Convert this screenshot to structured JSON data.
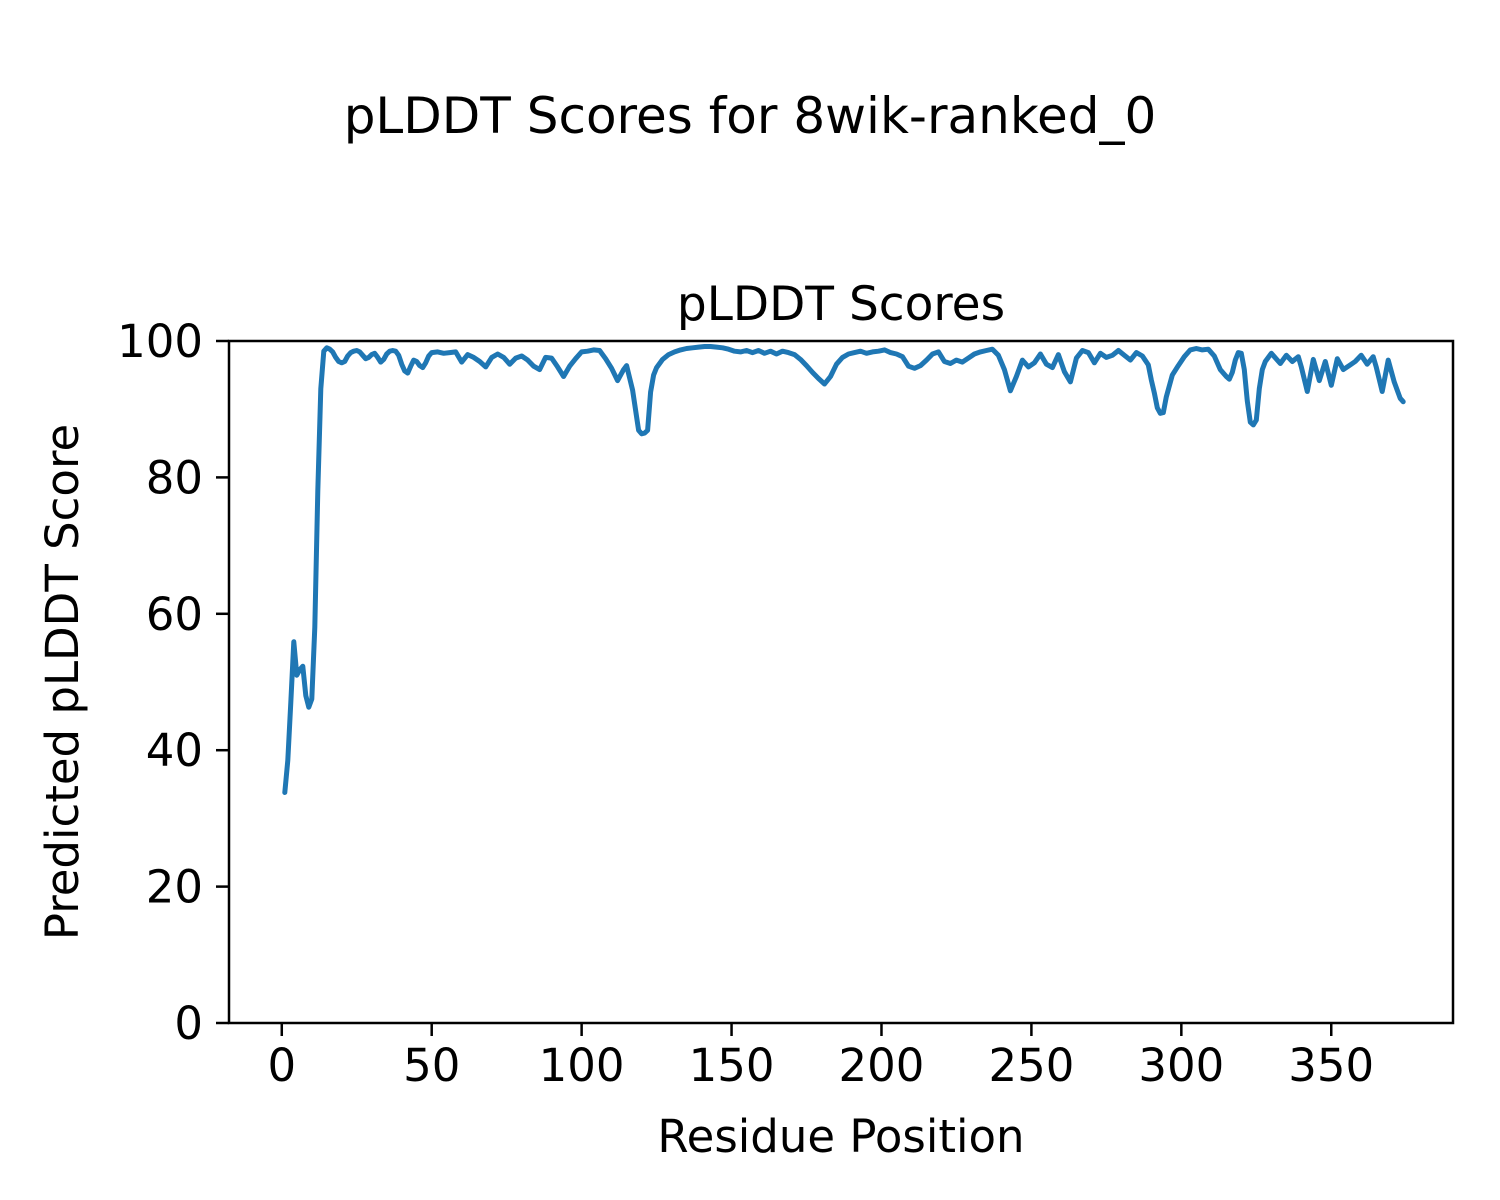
{
  "chart_data": {
    "type": "line",
    "suptitle": "pLDDT Scores for 8wik-ranked_0",
    "title": "pLDDT Scores",
    "xlabel": "Residue Position",
    "ylabel": "Predicted pLDDT Score",
    "xlim": [
      -17.6,
      390.6
    ],
    "ylim": [
      0,
      100
    ],
    "xticks": [
      0,
      50,
      100,
      150,
      200,
      250,
      300,
      350
    ],
    "yticks": [
      0,
      20,
      40,
      60,
      80,
      100
    ],
    "grid": false,
    "legend": "none",
    "line_color": "#1f77b4",
    "series": [
      {
        "name": "pLDDT",
        "points": [
          [
            1,
            33.8
          ],
          [
            2,
            38.5
          ],
          [
            3,
            47.0
          ],
          [
            4,
            55.9
          ],
          [
            5,
            51.0
          ],
          [
            6,
            51.8
          ],
          [
            7,
            52.3
          ],
          [
            8,
            48.0
          ],
          [
            9,
            46.3
          ],
          [
            10,
            47.5
          ],
          [
            11,
            58.0
          ],
          [
            12,
            78.0
          ],
          [
            13,
            93.0
          ],
          [
            14,
            98.5
          ],
          [
            15,
            99.0
          ],
          [
            16,
            98.8
          ],
          [
            17,
            98.4
          ],
          [
            18,
            97.6
          ],
          [
            19,
            97.0
          ],
          [
            20,
            96.8
          ],
          [
            21,
            97.0
          ],
          [
            22,
            97.8
          ],
          [
            23,
            98.3
          ],
          [
            24,
            98.5
          ],
          [
            25,
            98.6
          ],
          [
            26,
            98.4
          ],
          [
            27,
            97.9
          ],
          [
            28,
            97.4
          ],
          [
            29,
            97.6
          ],
          [
            30,
            98.0
          ],
          [
            31,
            98.2
          ],
          [
            32,
            97.6
          ],
          [
            33,
            96.9
          ],
          [
            34,
            97.3
          ],
          [
            35,
            98.1
          ],
          [
            36,
            98.5
          ],
          [
            37,
            98.6
          ],
          [
            38,
            98.5
          ],
          [
            39,
            97.9
          ],
          [
            40,
            96.6
          ],
          [
            41,
            95.6
          ],
          [
            42,
            95.3
          ],
          [
            43,
            96.3
          ],
          [
            44,
            97.2
          ],
          [
            45,
            97.0
          ],
          [
            46,
            96.4
          ],
          [
            47,
            96.1
          ],
          [
            48,
            96.8
          ],
          [
            49,
            97.8
          ],
          [
            50,
            98.3
          ],
          [
            52,
            98.4
          ],
          [
            54,
            98.2
          ],
          [
            56,
            98.3
          ],
          [
            58,
            98.4
          ],
          [
            60,
            96.9
          ],
          [
            62,
            98.0
          ],
          [
            64,
            97.6
          ],
          [
            66,
            97.0
          ],
          [
            68,
            96.2
          ],
          [
            70,
            97.6
          ],
          [
            72,
            98.1
          ],
          [
            74,
            97.6
          ],
          [
            76,
            96.6
          ],
          [
            78,
            97.5
          ],
          [
            80,
            97.8
          ],
          [
            82,
            97.2
          ],
          [
            84,
            96.3
          ],
          [
            86,
            95.8
          ],
          [
            88,
            97.6
          ],
          [
            90,
            97.5
          ],
          [
            92,
            96.2
          ],
          [
            94,
            94.8
          ],
          [
            96,
            96.3
          ],
          [
            98,
            97.4
          ],
          [
            100,
            98.4
          ],
          [
            102,
            98.5
          ],
          [
            104,
            98.7
          ],
          [
            106,
            98.6
          ],
          [
            108,
            97.4
          ],
          [
            110,
            96.0
          ],
          [
            112,
            94.2
          ],
          [
            114,
            95.8
          ],
          [
            115,
            96.4
          ],
          [
            117,
            92.8
          ],
          [
            119,
            86.9
          ],
          [
            120,
            86.4
          ],
          [
            121,
            86.5
          ],
          [
            122,
            86.9
          ],
          [
            123,
            92.5
          ],
          [
            124,
            95.0
          ],
          [
            125,
            96.1
          ],
          [
            127,
            97.3
          ],
          [
            129,
            98.0
          ],
          [
            131,
            98.4
          ],
          [
            133,
            98.7
          ],
          [
            135,
            98.9
          ],
          [
            137,
            99.0
          ],
          [
            139,
            99.1
          ],
          [
            141,
            99.2
          ],
          [
            143,
            99.2
          ],
          [
            145,
            99.1
          ],
          [
            147,
            99.0
          ],
          [
            149,
            98.8
          ],
          [
            151,
            98.5
          ],
          [
            153,
            98.4
          ],
          [
            155,
            98.6
          ],
          [
            157,
            98.3
          ],
          [
            159,
            98.6
          ],
          [
            161,
            98.2
          ],
          [
            163,
            98.5
          ],
          [
            165,
            98.1
          ],
          [
            167,
            98.5
          ],
          [
            169,
            98.3
          ],
          [
            171,
            98.0
          ],
          [
            173,
            97.3
          ],
          [
            175,
            96.4
          ],
          [
            177,
            95.4
          ],
          [
            179,
            94.5
          ],
          [
            181,
            93.7
          ],
          [
            183,
            94.8
          ],
          [
            185,
            96.6
          ],
          [
            187,
            97.6
          ],
          [
            189,
            98.1
          ],
          [
            191,
            98.3
          ],
          [
            193,
            98.5
          ],
          [
            195,
            98.2
          ],
          [
            197,
            98.4
          ],
          [
            199,
            98.5
          ],
          [
            201,
            98.7
          ],
          [
            203,
            98.3
          ],
          [
            205,
            98.1
          ],
          [
            207,
            97.7
          ],
          [
            209,
            96.3
          ],
          [
            211,
            96.0
          ],
          [
            213,
            96.4
          ],
          [
            215,
            97.2
          ],
          [
            217,
            98.1
          ],
          [
            219,
            98.4
          ],
          [
            221,
            97.0
          ],
          [
            223,
            96.7
          ],
          [
            225,
            97.2
          ],
          [
            227,
            96.9
          ],
          [
            229,
            97.5
          ],
          [
            231,
            98.1
          ],
          [
            233,
            98.4
          ],
          [
            235,
            98.6
          ],
          [
            237,
            98.8
          ],
          [
            239,
            97.9
          ],
          [
            241,
            95.8
          ],
          [
            243,
            92.7
          ],
          [
            245,
            94.8
          ],
          [
            247,
            97.2
          ],
          [
            249,
            96.2
          ],
          [
            251,
            96.8
          ],
          [
            253,
            98.1
          ],
          [
            255,
            96.6
          ],
          [
            257,
            96.1
          ],
          [
            259,
            98.0
          ],
          [
            261,
            95.5
          ],
          [
            263,
            94.0
          ],
          [
            265,
            97.5
          ],
          [
            267,
            98.6
          ],
          [
            269,
            98.3
          ],
          [
            271,
            96.8
          ],
          [
            273,
            98.2
          ],
          [
            275,
            97.6
          ],
          [
            277,
            97.9
          ],
          [
            279,
            98.6
          ],
          [
            281,
            97.9
          ],
          [
            283,
            97.2
          ],
          [
            285,
            98.3
          ],
          [
            287,
            97.8
          ],
          [
            289,
            96.5
          ],
          [
            290,
            94.3
          ],
          [
            291,
            92.4
          ],
          [
            292,
            90.2
          ],
          [
            293,
            89.4
          ],
          [
            294,
            89.5
          ],
          [
            295,
            91.8
          ],
          [
            297,
            95.0
          ],
          [
            299,
            96.4
          ],
          [
            301,
            97.7
          ],
          [
            303,
            98.7
          ],
          [
            305,
            98.9
          ],
          [
            307,
            98.7
          ],
          [
            309,
            98.8
          ],
          [
            311,
            97.8
          ],
          [
            313,
            95.8
          ],
          [
            315,
            94.8
          ],
          [
            316,
            94.4
          ],
          [
            317,
            95.4
          ],
          [
            318,
            97.2
          ],
          [
            319,
            98.3
          ],
          [
            320,
            98.2
          ],
          [
            321,
            95.8
          ],
          [
            322,
            91.2
          ],
          [
            323,
            88.1
          ],
          [
            324,
            87.7
          ],
          [
            325,
            88.4
          ],
          [
            326,
            93.0
          ],
          [
            327,
            95.8
          ],
          [
            328,
            97.0
          ],
          [
            330,
            98.2
          ],
          [
            331,
            97.7
          ],
          [
            333,
            96.7
          ],
          [
            335,
            97.9
          ],
          [
            337,
            97.0
          ],
          [
            339,
            97.7
          ],
          [
            340,
            96.2
          ],
          [
            342,
            92.6
          ],
          [
            344,
            97.3
          ],
          [
            346,
            94.2
          ],
          [
            348,
            97.0
          ],
          [
            350,
            93.5
          ],
          [
            352,
            97.4
          ],
          [
            354,
            95.8
          ],
          [
            356,
            96.4
          ],
          [
            358,
            97.0
          ],
          [
            360,
            97.9
          ],
          [
            362,
            96.6
          ],
          [
            364,
            97.7
          ],
          [
            365,
            96.2
          ],
          [
            367,
            92.6
          ],
          [
            369,
            97.2
          ],
          [
            371,
            94.0
          ],
          [
            372,
            92.8
          ],
          [
            373,
            91.6
          ],
          [
            374,
            91.1
          ]
        ]
      }
    ]
  }
}
